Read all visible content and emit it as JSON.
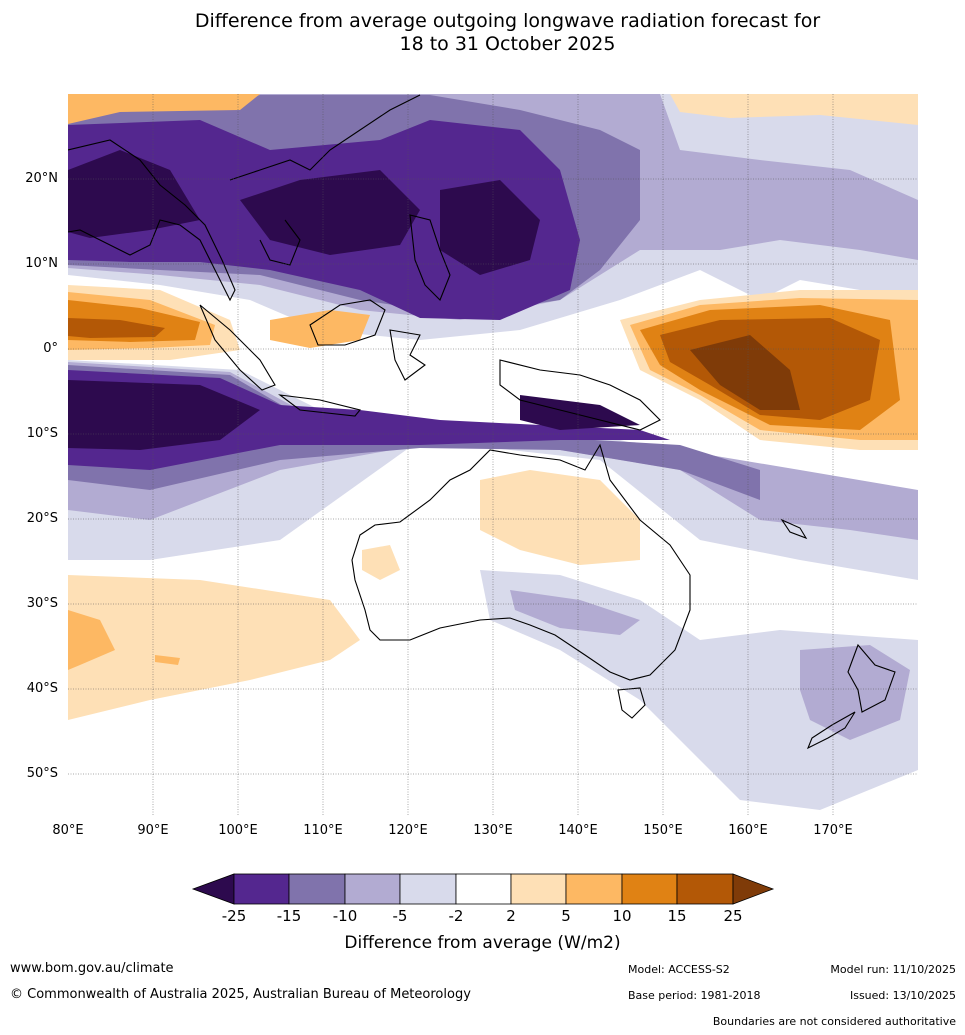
{
  "title": {
    "line1": "Difference from average outgoing longwave radiation forecast for",
    "line2": "18 to 31 October 2025"
  },
  "map": {
    "lat_labels": [
      "20°N",
      "10°N",
      "0°",
      "10°S",
      "20°S",
      "30°S",
      "40°S",
      "50°S"
    ],
    "lon_labels": [
      "80°E",
      "90°E",
      "100°E",
      "110°E",
      "120°E",
      "130°E",
      "140°E",
      "150°E",
      "160°E",
      "170°E"
    ]
  },
  "colorbar": {
    "ticks": [
      "-25",
      "-15",
      "-10",
      "-5",
      "-2",
      "2",
      "5",
      "10",
      "15",
      "25"
    ],
    "colors": [
      "#2d0a4e",
      "#54278f",
      "#8073ac",
      "#b2abd2",
      "#d8daeb",
      "#ffffff",
      "#fee0b6",
      "#fdb863",
      "#e08214",
      "#b35806",
      "#7f3b08"
    ],
    "title": "Difference from average (W/m2)"
  },
  "footer": {
    "url": "www.bom.gov.au/climate",
    "copyright": "© Commonwealth of Australia 2025, Australian Bureau of Meteorology",
    "model": "Model: ACCESS-S2",
    "base_period": "Base period: 1981-2018",
    "model_run": "Model run: 11/10/2025",
    "issued": "Issued: 13/10/2025",
    "disclaimer": "Boundaries are not considered authoritative"
  }
}
